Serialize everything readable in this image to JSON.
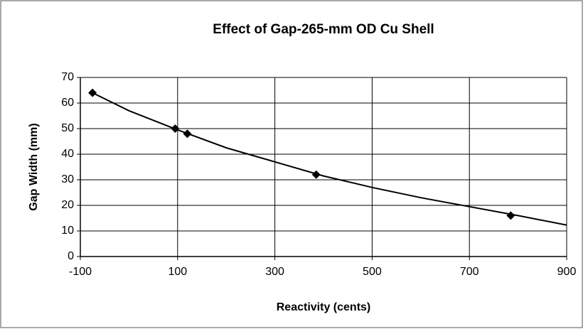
{
  "chart_data": {
    "type": "scatter",
    "title": "Effect of Gap-265-mm OD Cu Shell",
    "x_label": "Reactivity (cents)",
    "y_label": "Gap Width (mm)",
    "points": {
      "x": [
        -75,
        95,
        120,
        385,
        785
      ],
      "y": [
        64,
        50,
        48,
        32,
        16
      ],
      "color": "#000000"
    },
    "curve": {
      "x": [
        -75,
        0,
        100,
        200,
        300,
        400,
        500,
        600,
        700,
        800,
        900
      ],
      "y": [
        64,
        57,
        49.5,
        42.5,
        37,
        31.5,
        27,
        23,
        19.5,
        16,
        12.3
      ],
      "color": "#000000"
    },
    "xlim": [
      -100,
      900
    ],
    "xticks": [
      -100,
      100,
      300,
      500,
      700,
      900
    ],
    "ylim": [
      0,
      70
    ],
    "yticks": [
      0,
      10,
      20,
      30,
      40,
      50,
      60,
      70
    ],
    "grid": true
  }
}
